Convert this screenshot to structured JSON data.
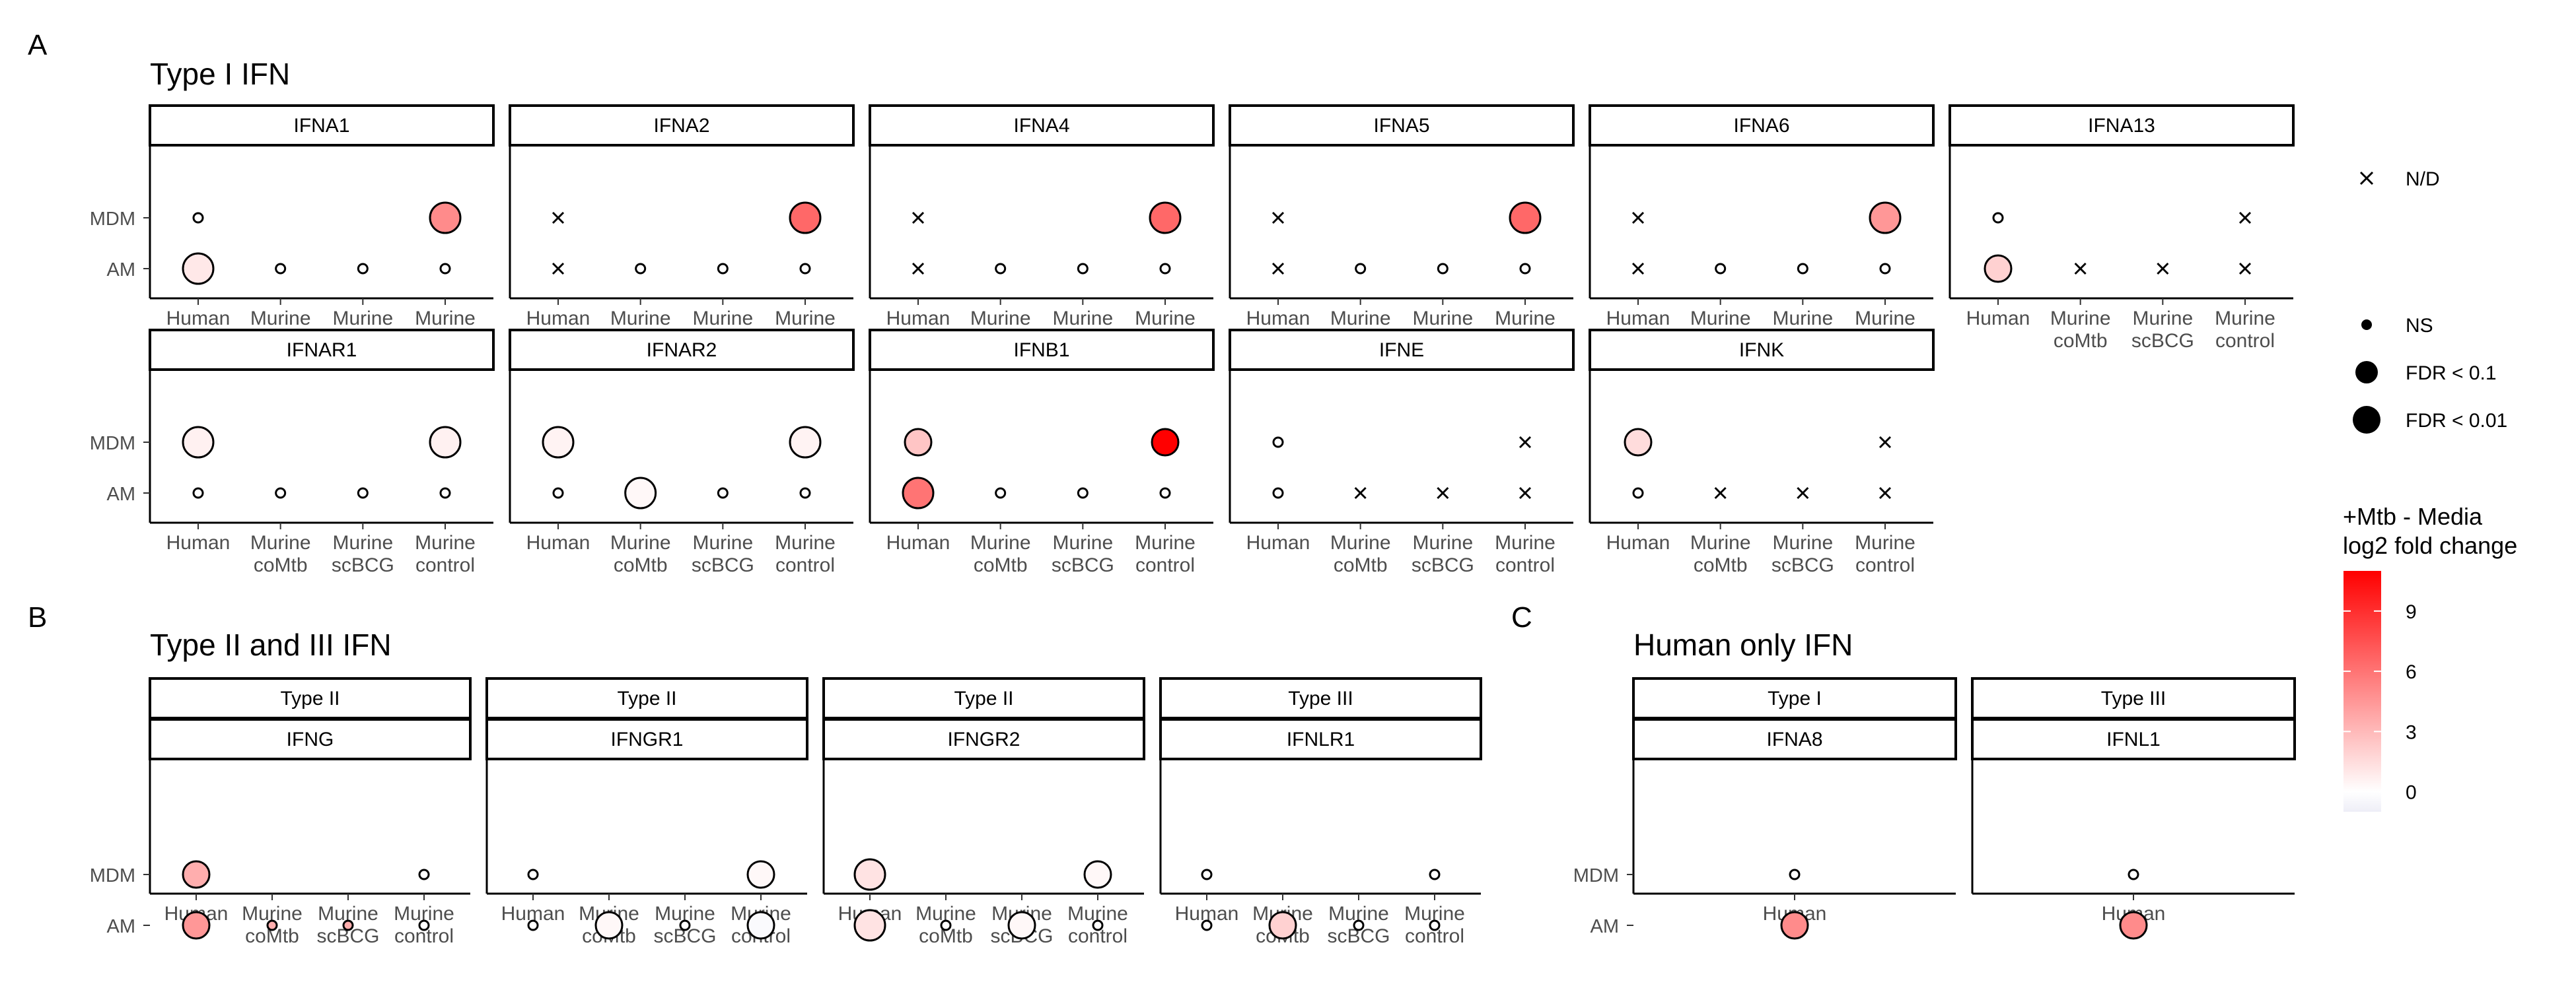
{
  "chart_data": {
    "type": "scatter",
    "x_categories": [
      "Human",
      "Murine coMtb",
      "Murine scBCG",
      "Murine control"
    ],
    "y_categories": [
      "MDM",
      "AM"
    ],
    "panels": [
      {
        "label": "A",
        "title": "Type I IFN",
        "facets": [
          {
            "strip": [
              "IFNA1"
            ],
            "points": [
              {
                "x": "Human",
                "y": "MDM",
                "sig": "NS",
                "fc": null
              },
              {
                "x": "Murine control",
                "y": "MDM",
                "sig": "FDR < 0.01",
                "fc": 5
              },
              {
                "x": "Human",
                "y": "AM",
                "sig": "FDR < 0.01",
                "fc": 1
              },
              {
                "x": "Murine coMtb",
                "y": "AM",
                "sig": "NS",
                "fc": null
              },
              {
                "x": "Murine scBCG",
                "y": "AM",
                "sig": "NS",
                "fc": null
              },
              {
                "x": "Murine control",
                "y": "AM",
                "sig": "NS",
                "fc": null
              }
            ]
          },
          {
            "strip": [
              "IFNA2"
            ],
            "points": [
              {
                "x": "Human",
                "y": "MDM",
                "sig": "N/D",
                "fc": null
              },
              {
                "x": "Murine control",
                "y": "MDM",
                "sig": "FDR < 0.01",
                "fc": 6.5
              },
              {
                "x": "Human",
                "y": "AM",
                "sig": "N/D",
                "fc": null
              },
              {
                "x": "Murine coMtb",
                "y": "AM",
                "sig": "NS",
                "fc": null
              },
              {
                "x": "Murine scBCG",
                "y": "AM",
                "sig": "NS",
                "fc": null
              },
              {
                "x": "Murine control",
                "y": "AM",
                "sig": "NS",
                "fc": null
              }
            ]
          },
          {
            "strip": [
              "IFNA4"
            ],
            "points": [
              {
                "x": "Human",
                "y": "MDM",
                "sig": "N/D",
                "fc": null
              },
              {
                "x": "Murine control",
                "y": "MDM",
                "sig": "FDR < 0.01",
                "fc": 6.5
              },
              {
                "x": "Human",
                "y": "AM",
                "sig": "N/D",
                "fc": null
              },
              {
                "x": "Murine coMtb",
                "y": "AM",
                "sig": "NS",
                "fc": null
              },
              {
                "x": "Murine scBCG",
                "y": "AM",
                "sig": "NS",
                "fc": null
              },
              {
                "x": "Murine control",
                "y": "AM",
                "sig": "NS",
                "fc": null
              }
            ]
          },
          {
            "strip": [
              "IFNA5"
            ],
            "points": [
              {
                "x": "Human",
                "y": "MDM",
                "sig": "N/D",
                "fc": null
              },
              {
                "x": "Murine control",
                "y": "MDM",
                "sig": "FDR < 0.01",
                "fc": 6.5
              },
              {
                "x": "Human",
                "y": "AM",
                "sig": "N/D",
                "fc": null
              },
              {
                "x": "Murine coMtb",
                "y": "AM",
                "sig": "NS",
                "fc": null
              },
              {
                "x": "Murine scBCG",
                "y": "AM",
                "sig": "NS",
                "fc": null
              },
              {
                "x": "Murine control",
                "y": "AM",
                "sig": "NS",
                "fc": null
              }
            ]
          },
          {
            "strip": [
              "IFNA6"
            ],
            "points": [
              {
                "x": "Human",
                "y": "MDM",
                "sig": "N/D",
                "fc": null
              },
              {
                "x": "Murine control",
                "y": "MDM",
                "sig": "FDR < 0.01",
                "fc": 4.5
              },
              {
                "x": "Human",
                "y": "AM",
                "sig": "N/D",
                "fc": null
              },
              {
                "x": "Murine coMtb",
                "y": "AM",
                "sig": "NS",
                "fc": null
              },
              {
                "x": "Murine scBCG",
                "y": "AM",
                "sig": "NS",
                "fc": null
              },
              {
                "x": "Murine control",
                "y": "AM",
                "sig": "NS",
                "fc": null
              }
            ]
          },
          {
            "strip": [
              "IFNA13"
            ],
            "points": [
              {
                "x": "Human",
                "y": "MDM",
                "sig": "NS",
                "fc": null
              },
              {
                "x": "Murine control",
                "y": "MDM",
                "sig": "N/D",
                "fc": null
              },
              {
                "x": "Human",
                "y": "AM",
                "sig": "FDR < 0.1",
                "fc": 2
              },
              {
                "x": "Murine coMtb",
                "y": "AM",
                "sig": "N/D",
                "fc": null
              },
              {
                "x": "Murine scBCG",
                "y": "AM",
                "sig": "N/D",
                "fc": null
              },
              {
                "x": "Murine control",
                "y": "AM",
                "sig": "N/D",
                "fc": null
              }
            ]
          },
          {
            "strip": [
              "IFNAR1"
            ],
            "points": [
              {
                "x": "Human",
                "y": "MDM",
                "sig": "FDR < 0.01",
                "fc": 0.6
              },
              {
                "x": "Murine control",
                "y": "MDM",
                "sig": "FDR < 0.01",
                "fc": 0.6
              },
              {
                "x": "Human",
                "y": "AM",
                "sig": "NS",
                "fc": null
              },
              {
                "x": "Murine coMtb",
                "y": "AM",
                "sig": "NS",
                "fc": null
              },
              {
                "x": "Murine scBCG",
                "y": "AM",
                "sig": "NS",
                "fc": null
              },
              {
                "x": "Murine control",
                "y": "AM",
                "sig": "NS",
                "fc": null
              }
            ]
          },
          {
            "strip": [
              "IFNAR2"
            ],
            "points": [
              {
                "x": "Human",
                "y": "MDM",
                "sig": "FDR < 0.01",
                "fc": 0.5
              },
              {
                "x": "Murine control",
                "y": "MDM",
                "sig": "FDR < 0.01",
                "fc": 0.5
              },
              {
                "x": "Human",
                "y": "AM",
                "sig": "NS",
                "fc": null
              },
              {
                "x": "Murine coMtb",
                "y": "AM",
                "sig": "FDR < 0.01",
                "fc": 0.3
              },
              {
                "x": "Murine scBCG",
                "y": "AM",
                "sig": "NS",
                "fc": null
              },
              {
                "x": "Murine control",
                "y": "AM",
                "sig": "NS",
                "fc": null
              }
            ]
          },
          {
            "strip": [
              "IFNB1"
            ],
            "points": [
              {
                "x": "Human",
                "y": "MDM",
                "sig": "FDR < 0.1",
                "fc": 2.5
              },
              {
                "x": "Murine control",
                "y": "MDM",
                "sig": "FDR < 0.1",
                "fc": 11
              },
              {
                "x": "Human",
                "y": "AM",
                "sig": "FDR < 0.01",
                "fc": 6
              },
              {
                "x": "Murine coMtb",
                "y": "AM",
                "sig": "NS",
                "fc": null
              },
              {
                "x": "Murine scBCG",
                "y": "AM",
                "sig": "NS",
                "fc": null
              },
              {
                "x": "Murine control",
                "y": "AM",
                "sig": "NS",
                "fc": null
              }
            ]
          },
          {
            "strip": [
              "IFNE"
            ],
            "points": [
              {
                "x": "Human",
                "y": "MDM",
                "sig": "NS",
                "fc": null
              },
              {
                "x": "Murine control",
                "y": "MDM",
                "sig": "N/D",
                "fc": null
              },
              {
                "x": "Human",
                "y": "AM",
                "sig": "NS",
                "fc": null
              },
              {
                "x": "Murine coMtb",
                "y": "AM",
                "sig": "N/D",
                "fc": null
              },
              {
                "x": "Murine scBCG",
                "y": "AM",
                "sig": "N/D",
                "fc": null
              },
              {
                "x": "Murine control",
                "y": "AM",
                "sig": "N/D",
                "fc": null
              }
            ]
          },
          {
            "strip": [
              "IFNK"
            ],
            "points": [
              {
                "x": "Human",
                "y": "MDM",
                "sig": "FDR < 0.1",
                "fc": 1.5
              },
              {
                "x": "Murine control",
                "y": "MDM",
                "sig": "N/D",
                "fc": null
              },
              {
                "x": "Human",
                "y": "AM",
                "sig": "NS",
                "fc": null
              },
              {
                "x": "Murine coMtb",
                "y": "AM",
                "sig": "N/D",
                "fc": null
              },
              {
                "x": "Murine scBCG",
                "y": "AM",
                "sig": "N/D",
                "fc": null
              },
              {
                "x": "Murine control",
                "y": "AM",
                "sig": "N/D",
                "fc": null
              }
            ]
          }
        ]
      },
      {
        "label": "B",
        "title": "Type II and III IFN",
        "facets": [
          {
            "strip": [
              "Type II",
              "IFNG"
            ],
            "points": [
              {
                "x": "Human",
                "y": "MDM",
                "sig": "FDR < 0.1",
                "fc": 3.5
              },
              {
                "x": "Murine control",
                "y": "MDM",
                "sig": "NS",
                "fc": null
              },
              {
                "x": "Human",
                "y": "AM",
                "sig": "FDR < 0.1",
                "fc": 4.5
              },
              {
                "x": "Murine coMtb",
                "y": "AM",
                "sig": "NS",
                "fc": 3.5
              },
              {
                "x": "Murine scBCG",
                "y": "AM",
                "sig": "NS",
                "fc": 3.5
              },
              {
                "x": "Murine control",
                "y": "AM",
                "sig": "NS",
                "fc": null
              }
            ]
          },
          {
            "strip": [
              "Type II",
              "IFNGR1"
            ],
            "points": [
              {
                "x": "Human",
                "y": "MDM",
                "sig": "NS",
                "fc": null
              },
              {
                "x": "Murine control",
                "y": "MDM",
                "sig": "FDR < 0.1",
                "fc": 0.3
              },
              {
                "x": "Human",
                "y": "AM",
                "sig": "NS",
                "fc": null
              },
              {
                "x": "Murine coMtb",
                "y": "AM",
                "sig": "FDR < 0.1",
                "fc": 0.3
              },
              {
                "x": "Murine scBCG",
                "y": "AM",
                "sig": "NS",
                "fc": null
              },
              {
                "x": "Murine control",
                "y": "AM",
                "sig": "FDR < 0.1",
                "fc": -0.3
              }
            ]
          },
          {
            "strip": [
              "Type II",
              "IFNGR2"
            ],
            "points": [
              {
                "x": "Human",
                "y": "MDM",
                "sig": "FDR < 0.01",
                "fc": 1.2
              },
              {
                "x": "Murine control",
                "y": "MDM",
                "sig": "FDR < 0.1",
                "fc": 0.3
              },
              {
                "x": "Human",
                "y": "AM",
                "sig": "FDR < 0.01",
                "fc": 1.2
              },
              {
                "x": "Murine coMtb",
                "y": "AM",
                "sig": "NS",
                "fc": null
              },
              {
                "x": "Murine scBCG",
                "y": "AM",
                "sig": "FDR < 0.1",
                "fc": 0.3
              },
              {
                "x": "Murine control",
                "y": "AM",
                "sig": "NS",
                "fc": null
              }
            ]
          },
          {
            "strip": [
              "Type III",
              "IFNLR1"
            ],
            "points": [
              {
                "x": "Human",
                "y": "MDM",
                "sig": "NS",
                "fc": null
              },
              {
                "x": "Murine control",
                "y": "MDM",
                "sig": "NS",
                "fc": null
              },
              {
                "x": "Human",
                "y": "AM",
                "sig": "NS",
                "fc": null
              },
              {
                "x": "Murine coMtb",
                "y": "AM",
                "sig": "FDR < 0.1",
                "fc": 2
              },
              {
                "x": "Murine scBCG",
                "y": "AM",
                "sig": "NS",
                "fc": null
              },
              {
                "x": "Murine control",
                "y": "AM",
                "sig": "NS",
                "fc": null
              }
            ]
          }
        ]
      },
      {
        "label": "C",
        "title": "Human only IFN",
        "x_categories": [
          "Human"
        ],
        "facets": [
          {
            "strip": [
              "Type I",
              "IFNA8"
            ],
            "points": [
              {
                "x": "Human",
                "y": "MDM",
                "sig": "NS",
                "fc": null
              },
              {
                "x": "Human",
                "y": "AM",
                "sig": "FDR < 0.1",
                "fc": 5
              }
            ]
          },
          {
            "strip": [
              "Type III",
              "IFNL1"
            ],
            "points": [
              {
                "x": "Human",
                "y": "MDM",
                "sig": "NS",
                "fc": null
              },
              {
                "x": "Human",
                "y": "AM",
                "sig": "FDR < 0.1",
                "fc": 5
              }
            ]
          }
        ]
      }
    ],
    "legend": {
      "shape": [
        {
          "label": "N/D",
          "mark": "cross"
        }
      ],
      "size": [
        {
          "label": "NS",
          "level": 0
        },
        {
          "label": "FDR < 0.1",
          "level": 1
        },
        {
          "label": "FDR < 0.01",
          "level": 2
        }
      ],
      "color": {
        "title": [
          "+Mtb - Media",
          "log2 fold change"
        ],
        "ticks": [
          9,
          6,
          3,
          0
        ],
        "range": [
          -1,
          11
        ],
        "low": "#EEEEF7",
        "mid": "#FFFFFF",
        "high": "#FF0000"
      }
    }
  }
}
